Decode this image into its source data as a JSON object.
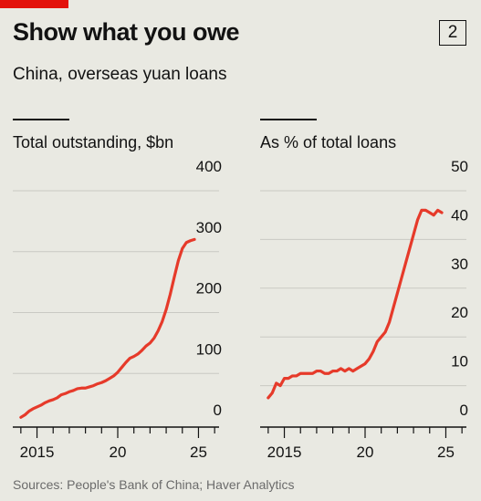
{
  "header": {
    "figure_number": "2",
    "title": "Show what you owe",
    "subtitle": "China, overseas yuan loans"
  },
  "source": "Sources: People's Bank of China; Haver Analytics",
  "colors": {
    "line": "#e63a2a",
    "accent": "#e3120b",
    "background": "#e9e9e2",
    "grid": "#c9c9c3"
  },
  "chart_data": [
    {
      "type": "line",
      "title": "Total outstanding, $bn",
      "x_ticks": [
        "2015",
        "20",
        "25"
      ],
      "y_ticks": [
        "0",
        "100",
        "200",
        "300",
        "400"
      ],
      "xlim": [
        2014.0,
        2027.0
      ],
      "ylim": [
        0,
        400
      ],
      "grid": true,
      "x": [
        2014.5,
        2014.75,
        2015.0,
        2015.25,
        2015.5,
        2015.75,
        2016.0,
        2016.25,
        2016.5,
        2016.75,
        2017.0,
        2017.25,
        2017.5,
        2017.75,
        2018.0,
        2018.25,
        2018.5,
        2018.75,
        2019.0,
        2019.25,
        2019.5,
        2019.75,
        2020.0,
        2020.25,
        2020.5,
        2020.75,
        2021.0,
        2021.25,
        2021.5,
        2021.75,
        2022.0,
        2022.25,
        2022.5,
        2022.75,
        2023.0,
        2023.25,
        2023.5,
        2023.75,
        2024.0,
        2024.25,
        2024.5,
        2024.75,
        2025.0,
        2025.25
      ],
      "y": [
        28,
        32,
        38,
        42,
        45,
        48,
        52,
        55,
        57,
        60,
        65,
        67,
        70,
        72,
        75,
        76,
        76,
        78,
        80,
        83,
        85,
        88,
        92,
        96,
        102,
        110,
        118,
        125,
        128,
        132,
        138,
        145,
        150,
        158,
        170,
        185,
        205,
        230,
        258,
        285,
        305,
        315,
        318,
        320
      ]
    },
    {
      "type": "line",
      "title": "As % of total loans",
      "x_ticks": [
        "2015",
        "20",
        "25"
      ],
      "y_ticks": [
        "0",
        "10",
        "20",
        "30",
        "40",
        "50"
      ],
      "xlim": [
        2014.0,
        2027.0
      ],
      "ylim": [
        0,
        50
      ],
      "grid": true,
      "x": [
        2014.5,
        2014.75,
        2015.0,
        2015.25,
        2015.5,
        2015.75,
        2016.0,
        2016.25,
        2016.5,
        2016.75,
        2017.0,
        2017.25,
        2017.5,
        2017.75,
        2018.0,
        2018.25,
        2018.5,
        2018.75,
        2019.0,
        2019.25,
        2019.5,
        2019.75,
        2020.0,
        2020.25,
        2020.5,
        2020.75,
        2021.0,
        2021.25,
        2021.5,
        2021.75,
        2022.0,
        2022.25,
        2022.5,
        2022.75,
        2023.0,
        2023.25,
        2023.5,
        2023.75,
        2024.0,
        2024.25,
        2024.5,
        2024.75,
        2025.0,
        2025.25
      ],
      "y": [
        7.5,
        8.5,
        10.5,
        10.0,
        11.5,
        11.5,
        12.0,
        12.0,
        12.5,
        12.5,
        12.5,
        12.5,
        13.0,
        13.0,
        12.5,
        12.5,
        13.0,
        13.0,
        13.5,
        13.0,
        13.5,
        13.0,
        13.5,
        14.0,
        14.5,
        15.5,
        17.0,
        19.0,
        20.0,
        21.0,
        23.0,
        26.0,
        29.0,
        32.0,
        35.0,
        38.0,
        41.0,
        44.0,
        46.0,
        46.0,
        45.5,
        45.0,
        46.0,
        45.5
      ]
    }
  ]
}
